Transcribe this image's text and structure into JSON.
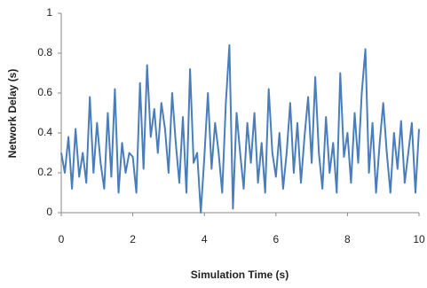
{
  "chart_data": {
    "type": "line",
    "xlabel": "Simulation Time (s)",
    "ylabel": "Network Delay (s)",
    "x": [
      0,
      0.1,
      0.2,
      0.3,
      0.4,
      0.5,
      0.6,
      0.7,
      0.8,
      0.9,
      1,
      1.1,
      1.2,
      1.3,
      1.4,
      1.5,
      1.6,
      1.7,
      1.8,
      1.9,
      2,
      2.1,
      2.2,
      2.3,
      2.4,
      2.5,
      2.6,
      2.7,
      2.8,
      2.9,
      3,
      3.1,
      3.2,
      3.3,
      3.4,
      3.5,
      3.6,
      3.7,
      3.8,
      3.9,
      4,
      4.1,
      4.2,
      4.3,
      4.4,
      4.5,
      4.6,
      4.7,
      4.8,
      4.9,
      5,
      5.1,
      5.2,
      5.3,
      5.4,
      5.5,
      5.6,
      5.7,
      5.8,
      5.9,
      6,
      6.1,
      6.2,
      6.3,
      6.4,
      6.5,
      6.6,
      6.7,
      6.8,
      6.9,
      7,
      7.1,
      7.2,
      7.3,
      7.4,
      7.5,
      7.6,
      7.7,
      7.8,
      7.9,
      8,
      8.1,
      8.2,
      8.3,
      8.4,
      8.5,
      8.6,
      8.7,
      8.8,
      8.9,
      9,
      9.1,
      9.2,
      9.3,
      9.4,
      9.5,
      9.6,
      9.7,
      9.8,
      9.9,
      10
    ],
    "series": [
      {
        "color": "#4a7ebb",
        "values": [
          0.3,
          0.2,
          0.38,
          0.12,
          0.42,
          0.18,
          0.3,
          0.15,
          0.58,
          0.2,
          0.45,
          0.25,
          0.12,
          0.5,
          0.18,
          0.62,
          0.1,
          0.35,
          0.2,
          0.3,
          0.28,
          0.1,
          0.65,
          0.22,
          0.74,
          0.38,
          0.52,
          0.3,
          0.55,
          0.42,
          0.2,
          0.6,
          0.35,
          0.15,
          0.48,
          0.1,
          0.72,
          0.25,
          0.3,
          0.0,
          0.28,
          0.6,
          0.22,
          0.45,
          0.3,
          0.1,
          0.55,
          0.84,
          0.02,
          0.5,
          0.3,
          0.12,
          0.45,
          0.25,
          0.5,
          0.15,
          0.35,
          0.1,
          0.62,
          0.3,
          0.18,
          0.4,
          0.12,
          0.3,
          0.55,
          0.2,
          0.45,
          0.15,
          0.38,
          0.58,
          0.25,
          0.68,
          0.3,
          0.12,
          0.48,
          0.2,
          0.35,
          0.1,
          0.7,
          0.28,
          0.4,
          0.15,
          0.5,
          0.25,
          0.6,
          0.82,
          0.2,
          0.45,
          0.1,
          0.35,
          0.55,
          0.3,
          0.1,
          0.4,
          0.22,
          0.46,
          0.15,
          0.3,
          0.45,
          0.1,
          0.42
        ]
      }
    ],
    "xlim": [
      0,
      10
    ],
    "xticks": [
      0,
      2,
      4,
      6,
      8,
      10
    ],
    "ylim": [
      0,
      1
    ],
    "yticks": [
      0,
      0.2,
      0.4,
      0.6,
      0.8,
      1
    ]
  }
}
